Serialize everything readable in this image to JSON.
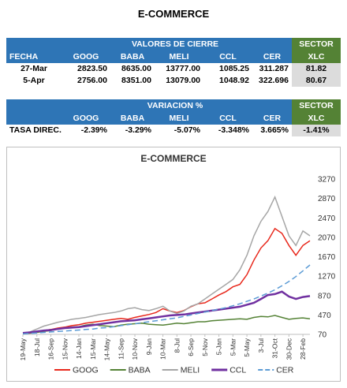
{
  "title": "E-COMMERCE",
  "table1": {
    "group_header": "VALORES DE CIERRE",
    "sector_header": "SECTOR",
    "columns": [
      "FECHA",
      "GOOG",
      "BABA",
      "MELI",
      "CCL",
      "CER",
      "XLC"
    ],
    "rows": [
      [
        "27-Mar",
        "2823.50",
        "8635.00",
        "13777.00",
        "1085.25",
        "311.287",
        "81.82"
      ],
      [
        "5-Apr",
        "2756.00",
        "8351.00",
        "13079.00",
        "1048.92",
        "322.696",
        "80.67"
      ]
    ]
  },
  "table2": {
    "group_header": "VARIACION %",
    "sector_header": "SECTOR",
    "columns": [
      "GOOG",
      "BABA",
      "MELI",
      "CCL",
      "CER",
      "XLC"
    ],
    "rows": [
      [
        "TASA DIREC.",
        "-2.39%",
        "-3.29%",
        "-5.07%",
        "-3.348%",
        "3.665%",
        "-1.41%"
      ]
    ]
  },
  "chart_data": {
    "type": "line",
    "title": "E-COMMERCE",
    "categories": [
      "19-May",
      null,
      "18-Jul",
      null,
      "16-Sep",
      null,
      "15-Nov",
      null,
      "14-Jan",
      null,
      "15-Mar",
      null,
      "14-May",
      null,
      "11-Sep",
      null,
      "10-Nov",
      null,
      "9-Jan",
      null,
      "10-Mar",
      null,
      "8-Jul",
      null,
      "6-Sep",
      null,
      "5-Nov",
      null,
      "5-Jan",
      null,
      "5-Mar",
      null,
      "5-May",
      null,
      "3-Jul",
      null,
      "31-Oct",
      null,
      "30-Dec",
      null,
      "28-Feb",
      null
    ],
    "series": [
      {
        "name": "GOOG",
        "color": "#e8281c",
        "values": [
          100,
          110,
          130,
          150,
          170,
          200,
          220,
          250,
          270,
          300,
          320,
          340,
          360,
          380,
          400,
          380,
          420,
          450,
          480,
          520,
          600,
          550,
          520,
          560,
          640,
          700,
          720,
          800,
          880,
          950,
          1050,
          1100,
          1300,
          1600,
          1850,
          2000,
          2250,
          2150,
          1900,
          1700,
          1900,
          2000
        ]
      },
      {
        "name": "BABA",
        "color": "#548235",
        "values": [
          90,
          95,
          110,
          130,
          150,
          180,
          200,
          220,
          230,
          260,
          280,
          250,
          240,
          230,
          260,
          280,
          290,
          300,
          280,
          270,
          260,
          280,
          300,
          290,
          310,
          330,
          330,
          350,
          360,
          370,
          380,
          390,
          380,
          420,
          440,
          430,
          460,
          420,
          380,
          400,
          410,
          390
        ]
      },
      {
        "name": "MELI",
        "color": "#a6a6a6",
        "values": [
          100,
          120,
          180,
          240,
          280,
          320,
          350,
          380,
          400,
          420,
          450,
          480,
          500,
          520,
          550,
          600,
          620,
          580,
          560,
          600,
          650,
          550,
          500,
          550,
          650,
          700,
          800,
          900,
          1000,
          1100,
          1200,
          1400,
          1700,
          2100,
          2400,
          2600,
          2900,
          2500,
          2100,
          1900,
          2200,
          2100
        ]
      },
      {
        "name": "CCL",
        "color": "#7030a0",
        "values": [
          100,
          110,
          130,
          150,
          160,
          180,
          200,
          210,
          220,
          240,
          260,
          280,
          300,
          320,
          340,
          350,
          360,
          380,
          400,
          420,
          440,
          460,
          470,
          480,
          500,
          520,
          540,
          560,
          580,
          600,
          620,
          640,
          680,
          720,
          800,
          880,
          900,
          950,
          850,
          800,
          840,
          860
        ]
      },
      {
        "name": "CER",
        "color": "#5b9bd5",
        "dash": true,
        "values": [
          80,
          90,
          100,
          110,
          120,
          130,
          140,
          150,
          160,
          170,
          180,
          200,
          210,
          230,
          250,
          270,
          290,
          310,
          330,
          350,
          370,
          390,
          410,
          440,
          470,
          500,
          530,
          560,
          590,
          620,
          660,
          700,
          750,
          800,
          860,
          920,
          990,
          1070,
          1160,
          1260,
          1380,
          1500
        ]
      }
    ],
    "ylim": [
      70,
      3270
    ],
    "yticks": [
      70,
      470,
      870,
      1270,
      1670,
      2070,
      2470,
      2870,
      3270
    ],
    "y_axis_side": "right"
  }
}
